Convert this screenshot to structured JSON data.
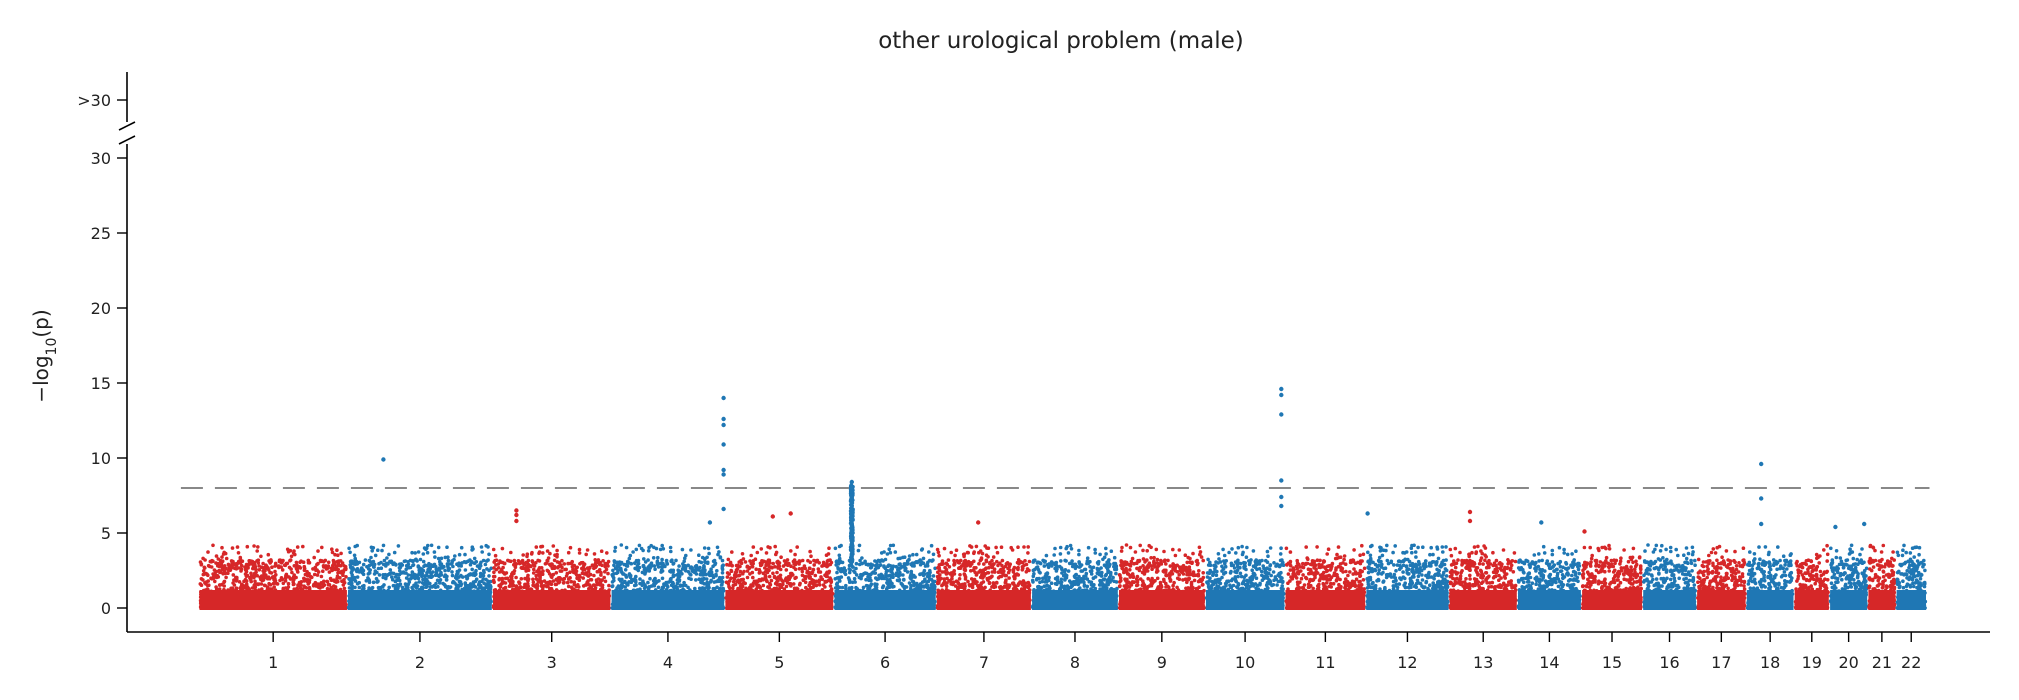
{
  "chart_data": {
    "type": "scatter",
    "subtype": "manhattan",
    "title": "other urological problem (male)",
    "ylabel": "−log10(p)",
    "ylabel_main": "−log",
    "ylabel_sub": "10",
    "ylabel_tail": "(p)",
    "ylim": [
      -1.6,
      30.5
    ],
    "yticks": [
      0,
      5,
      10,
      15,
      20,
      25,
      30
    ],
    "ybreak_label": ">30",
    "significance_threshold": 8,
    "grid": false,
    "legend": "none",
    "colors": {
      "odd": "#d62728",
      "even": "#1f77b4",
      "threshold": "#888888",
      "axis": "#000000"
    },
    "chromosomes": [
      {
        "label": "1",
        "start": 0,
        "end": 248
      },
      {
        "label": "2",
        "start": 248,
        "end": 490
      },
      {
        "label": "3",
        "start": 490,
        "end": 688
      },
      {
        "label": "4",
        "start": 688,
        "end": 878
      },
      {
        "label": "5",
        "start": 878,
        "end": 1060
      },
      {
        "label": "6",
        "start": 1060,
        "end": 1231
      },
      {
        "label": "7",
        "start": 1231,
        "end": 1390
      },
      {
        "label": "8",
        "start": 1390,
        "end": 1535
      },
      {
        "label": "9",
        "start": 1535,
        "end": 1680
      },
      {
        "label": "10",
        "start": 1680,
        "end": 1813
      },
      {
        "label": "11",
        "start": 1813,
        "end": 1948
      },
      {
        "label": "12",
        "start": 1948,
        "end": 2087
      },
      {
        "label": "13",
        "start": 2087,
        "end": 2201
      },
      {
        "label": "14",
        "start": 2201,
        "end": 2308
      },
      {
        "label": "15",
        "start": 2308,
        "end": 2410
      },
      {
        "label": "16",
        "start": 2410,
        "end": 2500
      },
      {
        "label": "17",
        "start": 2500,
        "end": 2583
      },
      {
        "label": "18",
        "start": 2583,
        "end": 2663
      },
      {
        "label": "19",
        "start": 2663,
        "end": 2722
      },
      {
        "label": "20",
        "start": 2722,
        "end": 2786
      },
      {
        "label": "21",
        "start": 2786,
        "end": 2833
      },
      {
        "label": "22",
        "start": 2833,
        "end": 2884
      }
    ],
    "xlim": [
      -120,
      2990
    ],
    "notable_points": [
      {
        "chr": "2",
        "pos": 60,
        "y": 9.9
      },
      {
        "chr": "3",
        "pos": 40,
        "y": 6.5
      },
      {
        "chr": "3",
        "pos": 40,
        "y": 6.2
      },
      {
        "chr": "3",
        "pos": 40,
        "y": 5.8
      },
      {
        "chr": "4",
        "pos": 165,
        "y": 5.7
      },
      {
        "chr": "4",
        "pos": 188,
        "y": 14.0
      },
      {
        "chr": "4",
        "pos": 188,
        "y": 12.6
      },
      {
        "chr": "4",
        "pos": 188,
        "y": 12.2
      },
      {
        "chr": "4",
        "pos": 188,
        "y": 10.9
      },
      {
        "chr": "4",
        "pos": 188,
        "y": 9.2
      },
      {
        "chr": "4",
        "pos": 188,
        "y": 8.9
      },
      {
        "chr": "4",
        "pos": 188,
        "y": 6.6
      },
      {
        "chr": "5",
        "pos": 80,
        "y": 6.1
      },
      {
        "chr": "5",
        "pos": 110,
        "y": 6.3
      },
      {
        "chr": "6",
        "pos": 30,
        "y": 8.4
      },
      {
        "chr": "6",
        "pos": 30,
        "y": 8.0
      },
      {
        "chr": "6",
        "pos": 30,
        "y": 7.5
      },
      {
        "chr": "6",
        "pos": 30,
        "y": 7.0
      },
      {
        "chr": "7",
        "pos": 70,
        "y": 5.7
      },
      {
        "chr": "10",
        "pos": 127,
        "y": 14.6
      },
      {
        "chr": "10",
        "pos": 127,
        "y": 14.2
      },
      {
        "chr": "10",
        "pos": 127,
        "y": 12.9
      },
      {
        "chr": "10",
        "pos": 127,
        "y": 8.5
      },
      {
        "chr": "10",
        "pos": 127,
        "y": 7.4
      },
      {
        "chr": "10",
        "pos": 127,
        "y": 6.8
      },
      {
        "chr": "12",
        "pos": 3,
        "y": 6.3
      },
      {
        "chr": "13",
        "pos": 35,
        "y": 6.4
      },
      {
        "chr": "13",
        "pos": 35,
        "y": 5.8
      },
      {
        "chr": "14",
        "pos": 40,
        "y": 5.7
      },
      {
        "chr": "15",
        "pos": 5,
        "y": 5.1
      },
      {
        "chr": "18",
        "pos": 25,
        "y": 9.6
      },
      {
        "chr": "18",
        "pos": 25,
        "y": 7.3
      },
      {
        "chr": "18",
        "pos": 25,
        "y": 5.6
      },
      {
        "chr": "20",
        "pos": 10,
        "y": 5.4
      },
      {
        "chr": "20",
        "pos": 58,
        "y": 5.6
      }
    ]
  }
}
